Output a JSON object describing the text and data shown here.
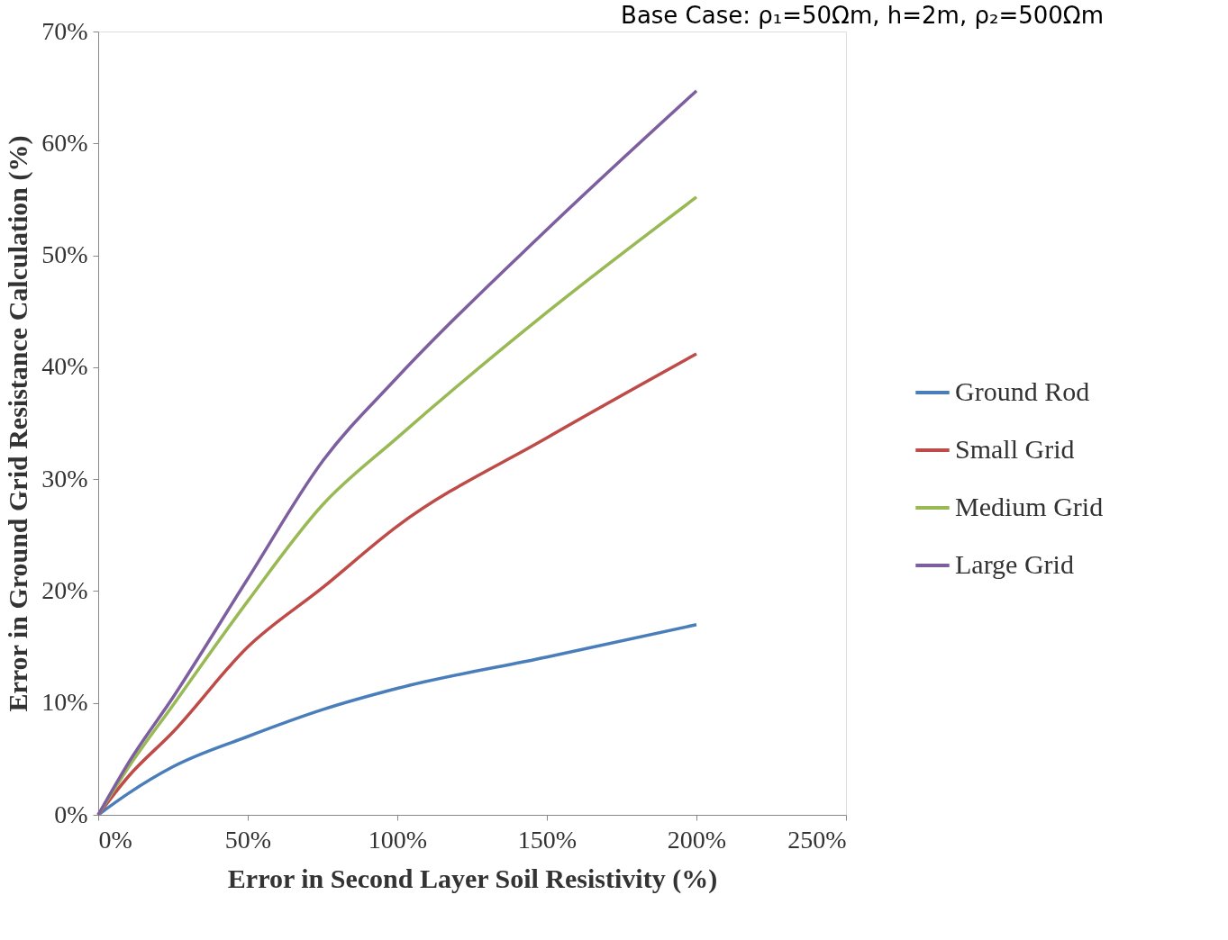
{
  "chart_data": {
    "type": "line",
    "title": "Base Case: ρ₁=50Ωm, h=2m, ρ₂=500Ωm",
    "xlabel": "Error in Second Layer Soil Resistivity (%)",
    "ylabel": "Error in Ground Grid Resistance Calculation (%)",
    "x": [
      0,
      10,
      25,
      50,
      75,
      100,
      150,
      200
    ],
    "series": [
      {
        "name": "Ground Rod",
        "color": "#4a7ebb",
        "values": [
          0,
          1.9,
          4.3,
          7.0,
          9.4,
          11.3,
          14.1,
          17.0
        ]
      },
      {
        "name": "Small Grid",
        "color": "#be4b48",
        "values": [
          0,
          3.4,
          7.4,
          15.0,
          20.3,
          25.8,
          33.7,
          41.2
        ]
      },
      {
        "name": "Medium Grid",
        "color": "#98b954",
        "values": [
          0,
          4.2,
          9.8,
          19.1,
          27.7,
          33.7,
          44.9,
          55.2
        ]
      },
      {
        "name": "Large Grid",
        "color": "#7d5fa0",
        "values": [
          0,
          4.6,
          10.5,
          21.1,
          31.6,
          39.1,
          52.3,
          64.7
        ]
      }
    ],
    "xlim": [
      0,
      250
    ],
    "ylim": [
      0,
      70
    ],
    "xticks": [
      {
        "value": 0,
        "label": "0%"
      },
      {
        "value": 50,
        "label": "50%"
      },
      {
        "value": 100,
        "label": "100%"
      },
      {
        "value": 150,
        "label": "150%"
      },
      {
        "value": 200,
        "label": "200%"
      },
      {
        "value": 250,
        "label": "250%"
      }
    ],
    "yticks": [
      {
        "value": 0,
        "label": "0%"
      },
      {
        "value": 10,
        "label": "10%"
      },
      {
        "value": 20,
        "label": "20%"
      },
      {
        "value": 30,
        "label": "30%"
      },
      {
        "value": 40,
        "label": "40%"
      },
      {
        "value": 50,
        "label": "50%"
      },
      {
        "value": 60,
        "label": "60%"
      },
      {
        "value": 70,
        "label": "70%"
      }
    ],
    "grid": false,
    "legend": "right",
    "marker": "none",
    "line_style": "solid"
  }
}
